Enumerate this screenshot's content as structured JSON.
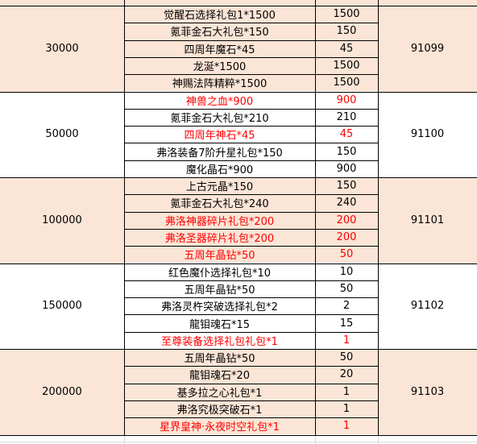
{
  "colors": {
    "band_peach": "#fbe5d6",
    "band_white": "#ffffff",
    "text_default": "#000000",
    "text_highlight": "#ff0000",
    "border": "#000000",
    "gridline": "#d9d9d9"
  },
  "groups": [
    {
      "threshold": "30000",
      "code": "91099",
      "band": "peach",
      "items": [
        {
          "name": "觉醒石选择礼包1*1500",
          "qty": "1500",
          "highlight": false
        },
        {
          "name": "氪菲金石大礼包*150",
          "qty": "150",
          "highlight": false
        },
        {
          "name": "四周年魔石*45",
          "qty": "45",
          "highlight": false
        },
        {
          "name": "龙涎*1500",
          "qty": "1500",
          "highlight": false
        },
        {
          "name": "神赐法阵精粹*1500",
          "qty": "1500",
          "highlight": false
        }
      ]
    },
    {
      "threshold": "50000",
      "code": "91100",
      "band": "white",
      "items": [
        {
          "name": "神兽之血*900",
          "qty": "900",
          "highlight": true
        },
        {
          "name": "氪菲金石大礼包*210",
          "qty": "210",
          "highlight": false
        },
        {
          "name": "四周年神石*45",
          "qty": "45",
          "highlight": true
        },
        {
          "name": "弗洛装备7阶升星礼包*150",
          "qty": "150",
          "highlight": false
        },
        {
          "name": "魔化晶石*900",
          "qty": "900",
          "highlight": false
        }
      ]
    },
    {
      "threshold": "100000",
      "code": "91101",
      "band": "peach",
      "items": [
        {
          "name": "上古元晶*150",
          "qty": "150",
          "highlight": false
        },
        {
          "name": "氪菲金石大礼包*240",
          "qty": "240",
          "highlight": false
        },
        {
          "name": "弗洛神器碎片礼包*200",
          "qty": "200",
          "highlight": true
        },
        {
          "name": "弗洛圣器碎片礼包*200",
          "qty": "200",
          "highlight": true
        },
        {
          "name": "五周年晶钻*50",
          "qty": "50",
          "highlight": true
        }
      ]
    },
    {
      "threshold": "150000",
      "code": "91102",
      "band": "white",
      "items": [
        {
          "name": "红色魔仆选择礼包*10",
          "qty": "10",
          "highlight": false
        },
        {
          "name": "五周年晶钻*50",
          "qty": "50",
          "highlight": false
        },
        {
          "name": "弗洛灵杵突破选择礼包*2",
          "qty": "2",
          "highlight": false
        },
        {
          "name": "龍钼魂石*15",
          "qty": "15",
          "highlight": false
        },
        {
          "name": "至尊装备选择礼包礼包*1",
          "qty": "1",
          "highlight": true
        }
      ]
    },
    {
      "threshold": "200000",
      "code": "91103",
      "band": "peach",
      "items": [
        {
          "name": "五周年晶钻*50",
          "qty": "50",
          "highlight": false
        },
        {
          "name": "龍钼魂石*20",
          "qty": "20",
          "highlight": false
        },
        {
          "name": "基多拉之心礼包*1",
          "qty": "1",
          "highlight": false
        },
        {
          "name": "弗洛究极突破石*1",
          "qty": "1",
          "highlight": false
        },
        {
          "name": "星界皇神·永夜时空礼包*1",
          "qty": "1",
          "highlight": true
        }
      ]
    }
  ]
}
